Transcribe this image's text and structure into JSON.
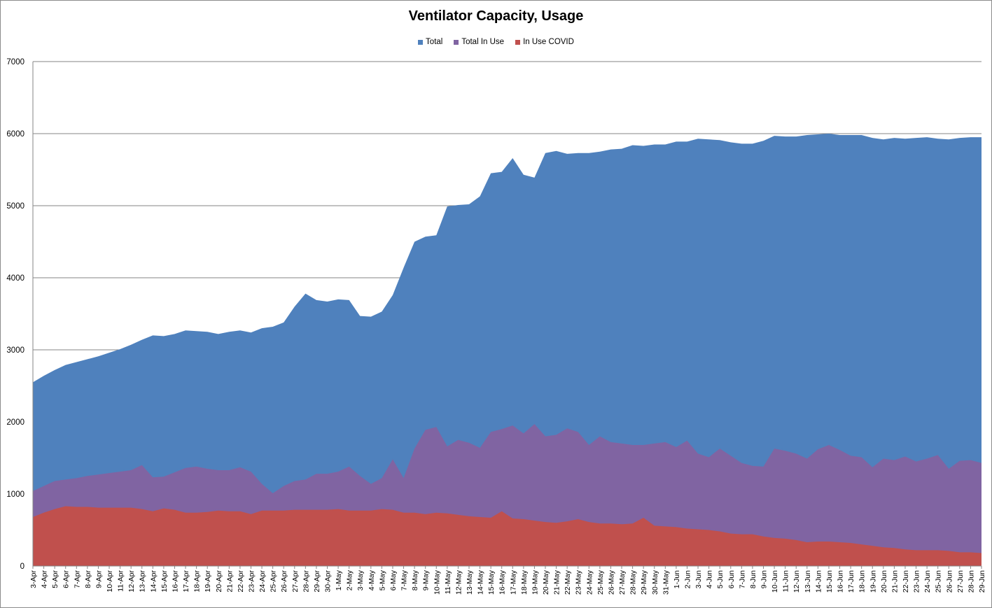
{
  "chart_data": {
    "type": "area",
    "title": "Ventilator Capacity, Usage",
    "xlabel": "",
    "ylabel": "",
    "ylim": [
      0,
      7000
    ],
    "yticks": [
      "0",
      "1000",
      "2000",
      "3000",
      "4000",
      "5000",
      "6000",
      "7000"
    ],
    "grid": true,
    "legend_position": "top-center",
    "categories": [
      "3-Apr",
      "4-Apr",
      "5-Apr",
      "6-Apr",
      "7-Apr",
      "8-Apr",
      "9-Apr",
      "10-Apr",
      "11-Apr",
      "12-Apr",
      "13-Apr",
      "14-Apr",
      "15-Apr",
      "16-Apr",
      "17-Apr",
      "18-Apr",
      "19-Apr",
      "20-Apr",
      "21-Apr",
      "22-Apr",
      "23-Apr",
      "24-Apr",
      "25-Apr",
      "26-Apr",
      "27-Apr",
      "28-Apr",
      "29-Apr",
      "30-Apr",
      "1-May",
      "2-May",
      "3-May",
      "4-May",
      "5-May",
      "6-May",
      "7-May",
      "8-May",
      "9-May",
      "10-May",
      "11-May",
      "12-May",
      "13-May",
      "14-May",
      "15-May",
      "16-May",
      "17-May",
      "18-May",
      "19-May",
      "20-May",
      "21-May",
      "22-May",
      "23-May",
      "24-May",
      "25-May",
      "26-May",
      "27-May",
      "28-May",
      "29-May",
      "30-May",
      "31-May",
      "1-Jun",
      "2-Jun",
      "3-Jun",
      "4-Jun",
      "5-Jun",
      "6-Jun",
      "7-Jun",
      "8-Jun",
      "9-Jun",
      "10-Jun",
      "11-Jun",
      "12-Jun",
      "13-Jun",
      "14-Jun",
      "15-Jun",
      "16-Jun",
      "17-Jun",
      "18-Jun",
      "19-Jun",
      "20-Jun",
      "21-Jun",
      "22-Jun",
      "23-Jun",
      "24-Jun",
      "25-Jun",
      "26-Jun",
      "27-Jun",
      "28-Jun",
      "29-Jun"
    ],
    "series": [
      {
        "name": "Total",
        "color": "#4f81bd",
        "values": [
          2550,
          2640,
          2720,
          2790,
          2830,
          2870,
          2910,
          2960,
          3010,
          3070,
          3140,
          3200,
          3190,
          3220,
          3270,
          3260,
          3250,
          3220,
          3250,
          3270,
          3240,
          3300,
          3320,
          3380,
          3600,
          3780,
          3690,
          3670,
          3700,
          3690,
          3470,
          3460,
          3530,
          3760,
          4140,
          4500,
          4570,
          4590,
          4990,
          5010,
          5020,
          5130,
          5450,
          5470,
          5660,
          5430,
          5390,
          5730,
          5760,
          5720,
          5730,
          5730,
          5750,
          5780,
          5790,
          5840,
          5830,
          5850,
          5850,
          5890,
          5890,
          5930,
          5920,
          5910,
          5880,
          5860,
          5860,
          5900,
          5970,
          5960,
          5960,
          5980,
          5990,
          6000,
          5980,
          5980,
          5980,
          5940,
          5920,
          5940,
          5930,
          5940,
          5950,
          5930,
          5920,
          5940,
          5950,
          5950
        ]
      },
      {
        "name": "Total In Use",
        "color": "#8064a2",
        "values": [
          1040,
          1110,
          1180,
          1200,
          1220,
          1250,
          1270,
          1290,
          1310,
          1330,
          1400,
          1230,
          1240,
          1300,
          1360,
          1380,
          1350,
          1330,
          1330,
          1370,
          1310,
          1140,
          1010,
          1110,
          1180,
          1200,
          1280,
          1280,
          1310,
          1380,
          1250,
          1140,
          1220,
          1480,
          1220,
          1630,
          1890,
          1930,
          1660,
          1750,
          1710,
          1640,
          1860,
          1900,
          1950,
          1840,
          1970,
          1800,
          1820,
          1910,
          1860,
          1680,
          1800,
          1720,
          1700,
          1680,
          1680,
          1700,
          1720,
          1650,
          1740,
          1560,
          1510,
          1630,
          1530,
          1430,
          1390,
          1380,
          1630,
          1600,
          1560,
          1490,
          1620,
          1680,
          1610,
          1530,
          1510,
          1370,
          1490,
          1470,
          1520,
          1450,
          1490,
          1540,
          1350,
          1460,
          1470,
          1430
        ]
      },
      {
        "name": "In Use COVID",
        "color": "#c0504d",
        "values": [
          680,
          740,
          790,
          830,
          820,
          820,
          810,
          810,
          810,
          810,
          790,
          760,
          800,
          780,
          740,
          740,
          750,
          770,
          760,
          760,
          720,
          770,
          770,
          770,
          780,
          780,
          780,
          780,
          790,
          770,
          770,
          770,
          790,
          780,
          740,
          740,
          720,
          740,
          730,
          710,
          690,
          680,
          670,
          760,
          660,
          650,
          630,
          610,
          600,
          620,
          650,
          610,
          590,
          590,
          580,
          590,
          670,
          560,
          550,
          540,
          520,
          510,
          500,
          480,
          450,
          440,
          440,
          410,
          390,
          380,
          360,
          330,
          340,
          340,
          330,
          320,
          300,
          280,
          260,
          250,
          230,
          220,
          220,
          220,
          210,
          190,
          190,
          180
        ]
      }
    ]
  }
}
